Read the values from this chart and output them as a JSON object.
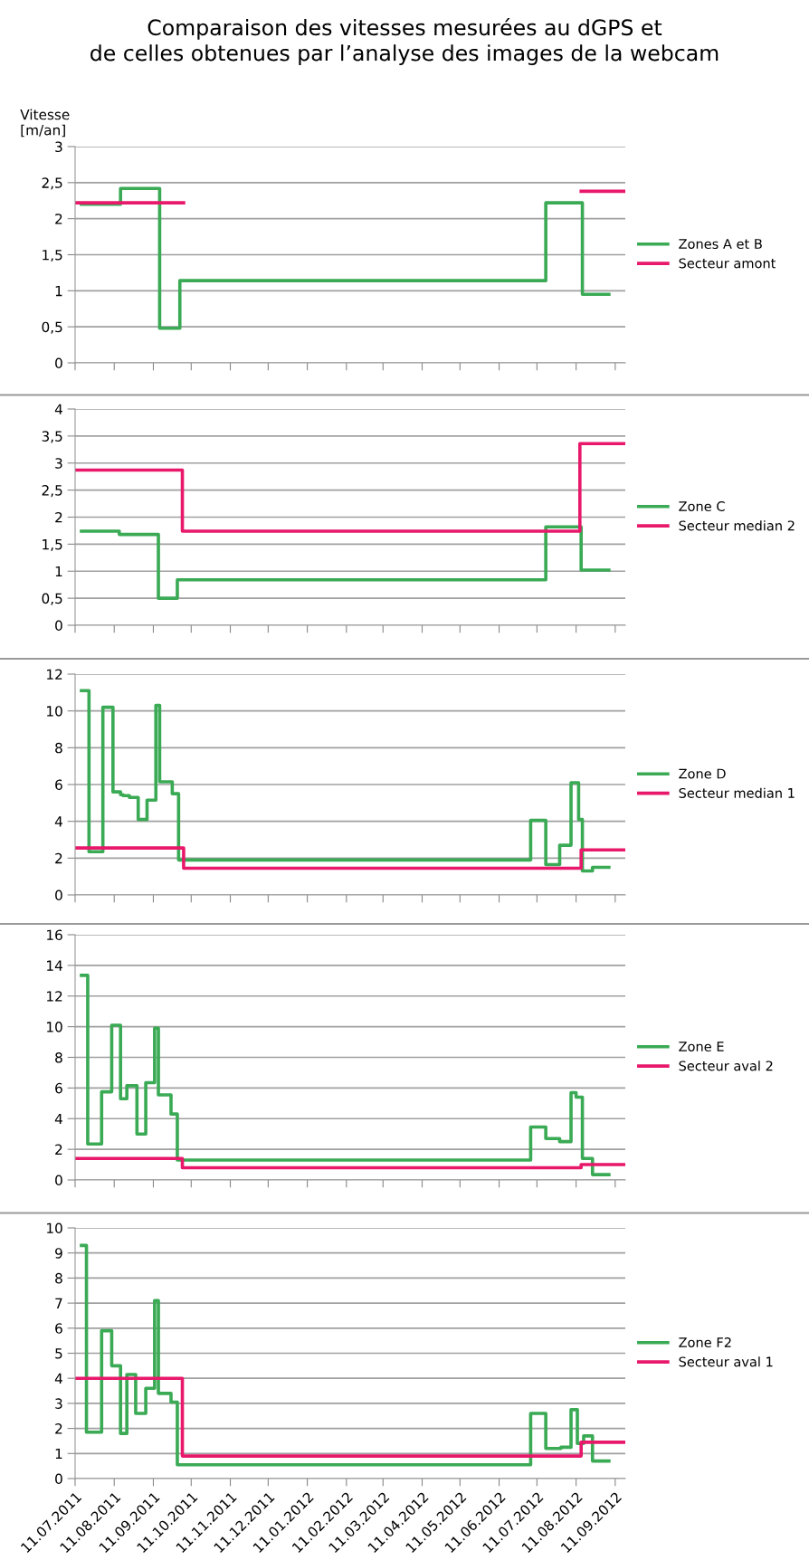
{
  "chart_data": [
    {
      "type": "step",
      "title": "Comparaison des vitesses mesurées au dGPS et\nde celles obtenues par l’analyse des images de la webcam",
      "ylabel": "Vitesse\n[m/an]",
      "xlim": [
        "2011-07-11",
        "2012-09-19"
      ],
      "ylim": [
        0,
        3
      ],
      "yticks": [
        0,
        {
          "value": 0.5,
          "label": "0,5"
        },
        1,
        {
          "value": 1.5,
          "label": "1,5"
        },
        2,
        {
          "value": 2.5,
          "label": "2,5"
        },
        3
      ],
      "xticks": [
        "2011-07-11",
        "2011-08-11",
        "2011-09-11",
        "2011-10-11",
        "2011-11-11",
        "2011-12-11",
        "2012-01-11",
        "2012-02-11",
        "2012-03-11",
        "2012-04-11",
        "2012-05-11",
        "2012-06-11",
        "2012-07-11",
        "2012-08-11",
        "2012-09-11"
      ],
      "tick_labels": "y",
      "grid": "y",
      "legend": "right",
      "series": [
        {
          "name": "Zones A et B",
          "color": "#3aaa55",
          "x": [
            "2011-07-16",
            "2011-08-16",
            "2011-09-16",
            "2011-10-02",
            "2012-07-18",
            "2012-08-16",
            "2012-09-06"
          ],
          "values": [
            2.2,
            2.42,
            0.48,
            1.14,
            2.22,
            0.95,
            0.95
          ]
        },
        {
          "name": "Secteur amont",
          "color": "#e8196b",
          "x": [
            "2011-07-11",
            "2011-10-05",
            "2012-08-15",
            "2012-09-19"
          ],
          "values": [
            2.22,
            null,
            2.38,
            2.38
          ]
        }
      ]
    },
    {
      "type": "step",
      "xlim": [
        "2011-07-11",
        "2012-09-19"
      ],
      "ylim": [
        0,
        4
      ],
      "yticks": [
        0,
        {
          "value": 0.5,
          "label": "0,5"
        },
        1,
        {
          "value": 1.5,
          "label": "1,5"
        },
        2,
        {
          "value": 2.5,
          "label": "2,5"
        },
        3,
        {
          "value": 3.5,
          "label": "3,5"
        },
        4
      ],
      "xticks": [
        "2011-07-11",
        "2011-08-11",
        "2011-09-11",
        "2011-10-11",
        "2011-11-11",
        "2011-12-11",
        "2012-01-11",
        "2012-02-11",
        "2012-03-11",
        "2012-04-11",
        "2012-05-11",
        "2012-06-11",
        "2012-07-11",
        "2012-08-11",
        "2012-09-11"
      ],
      "tick_labels": "y",
      "grid": "y",
      "legend": "right",
      "series": [
        {
          "name": "Zone C",
          "color": "#3aaa55",
          "x": [
            "2011-07-16",
            "2011-08-15",
            "2011-09-15",
            "2011-09-30",
            "2012-07-18",
            "2012-08-15",
            "2012-09-06"
          ],
          "values": [
            1.74,
            1.68,
            0.5,
            0.84,
            1.82,
            1.02,
            1.02
          ]
        },
        {
          "name": "Secteur median 2",
          "color": "#e8196b",
          "x": [
            "2011-07-11",
            "2011-10-04",
            "2012-08-14",
            "2012-09-19"
          ],
          "values": [
            2.87,
            1.74,
            3.36,
            3.36
          ]
        }
      ]
    },
    {
      "type": "step",
      "xlim": [
        "2011-07-11",
        "2012-09-19"
      ],
      "ylim": [
        0,
        12
      ],
      "yticks": [
        0,
        2,
        4,
        6,
        8,
        10,
        12
      ],
      "xticks": [
        "2011-07-11",
        "2011-08-11",
        "2011-09-11",
        "2011-10-11",
        "2011-11-11",
        "2011-12-11",
        "2012-01-11",
        "2012-02-11",
        "2012-03-11",
        "2012-04-11",
        "2012-05-11",
        "2012-06-11",
        "2012-07-11",
        "2012-08-11",
        "2012-09-11"
      ],
      "tick_labels": "y",
      "grid": "y",
      "legend": "right",
      "series": [
        {
          "name": "Zone D",
          "color": "#3aaa55",
          "x": [
            "2011-07-16",
            "2011-07-22",
            "2011-08-02",
            "2011-08-10",
            "2011-08-16",
            "2011-08-18",
            "2011-08-23",
            "2011-08-30",
            "2011-09-06",
            "2011-09-13",
            "2011-09-16",
            "2011-09-26",
            "2011-10-01",
            "2012-07-06",
            "2012-07-18",
            "2012-07-29",
            "2012-08-07",
            "2012-08-13",
            "2012-08-16",
            "2012-08-24",
            "2012-09-06"
          ],
          "values": [
            11.1,
            2.35,
            10.2,
            5.6,
            5.45,
            5.4,
            5.3,
            4.1,
            5.15,
            10.3,
            6.15,
            5.5,
            1.9,
            4.05,
            1.65,
            2.7,
            6.1,
            4.1,
            1.3,
            1.5,
            1.5
          ]
        },
        {
          "name": "Secteur median 1",
          "color": "#e8196b",
          "x": [
            "2011-07-11",
            "2011-10-05",
            "2012-08-15",
            "2012-09-19"
          ],
          "values": [
            2.55,
            1.45,
            2.45,
            2.45
          ]
        }
      ]
    },
    {
      "type": "step",
      "xlim": [
        "2011-07-11",
        "2012-09-19"
      ],
      "ylim": [
        0,
        16
      ],
      "yticks": [
        0,
        2,
        4,
        6,
        8,
        10,
        12,
        14,
        16
      ],
      "xticks": [
        "2011-07-11",
        "2011-08-11",
        "2011-09-11",
        "2011-10-11",
        "2011-11-11",
        "2011-12-11",
        "2012-01-11",
        "2012-02-11",
        "2012-03-11",
        "2012-04-11",
        "2012-05-11",
        "2012-06-11",
        "2012-07-11",
        "2012-08-11",
        "2012-09-11"
      ],
      "tick_labels": "y",
      "grid": "y",
      "legend": "right",
      "series": [
        {
          "name": "Zone E",
          "color": "#3aaa55",
          "x": [
            "2011-07-16",
            "2011-07-21",
            "2011-08-01",
            "2011-08-09",
            "2011-08-16",
            "2011-08-21",
            "2011-08-29",
            "2011-09-05",
            "2011-09-12",
            "2011-09-15",
            "2011-09-25",
            "2011-09-30",
            "2012-07-06",
            "2012-07-18",
            "2012-07-29",
            "2012-08-07",
            "2012-08-11",
            "2012-08-16",
            "2012-08-24",
            "2012-09-06"
          ],
          "values": [
            13.35,
            2.35,
            5.75,
            10.1,
            5.3,
            6.15,
            3.0,
            6.35,
            9.9,
            5.55,
            4.3,
            1.3,
            3.45,
            2.7,
            2.5,
            5.7,
            5.4,
            1.4,
            0.35,
            0.35
          ]
        },
        {
          "name": "Secteur aval 2",
          "color": "#e8196b",
          "x": [
            "2011-07-11",
            "2011-10-04",
            "2012-08-15",
            "2012-09-19"
          ],
          "values": [
            1.4,
            0.8,
            1.0,
            1.0
          ]
        }
      ]
    },
    {
      "type": "step",
      "xlim": [
        "2011-07-11",
        "2012-09-19"
      ],
      "ylim": [
        0,
        10
      ],
      "yticks": [
        0,
        1,
        2,
        3,
        4,
        5,
        6,
        7,
        8,
        9,
        10
      ],
      "xticks": [
        {
          "value": "2011-07-11",
          "label": "11.07.2011"
        },
        {
          "value": "2011-08-11",
          "label": "11.08.2011"
        },
        {
          "value": "2011-09-11",
          "label": "11.09.2011"
        },
        {
          "value": "2011-10-11",
          "label": "11.10.2011"
        },
        {
          "value": "2011-11-11",
          "label": "11.11.2011"
        },
        {
          "value": "2011-12-11",
          "label": "11.12.2011"
        },
        {
          "value": "2012-01-11",
          "label": "11.01.2012"
        },
        {
          "value": "2012-02-11",
          "label": "11.02.2012"
        },
        {
          "value": "2012-03-11",
          "label": "11.03.2012"
        },
        {
          "value": "2012-04-11",
          "label": "11.04.2012"
        },
        {
          "value": "2012-05-11",
          "label": "11.05.2012"
        },
        {
          "value": "2012-06-11",
          "label": "11.06.2012"
        },
        {
          "value": "2012-07-11",
          "label": "11.07.2012"
        },
        {
          "value": "2012-08-11",
          "label": "11.08.2012"
        },
        {
          "value": "2012-09-11",
          "label": "11.09.2012"
        }
      ],
      "grid": "y",
      "legend": "right",
      "series": [
        {
          "name": "Zone F2",
          "color": "#3aaa55",
          "x": [
            "2011-07-16",
            "2011-07-20",
            "2011-08-01",
            "2011-08-09",
            "2011-08-16",
            "2011-08-21",
            "2011-08-28",
            "2011-09-05",
            "2011-09-12",
            "2011-09-15",
            "2011-09-25",
            "2011-09-30",
            "2012-07-06",
            "2012-07-18",
            "2012-07-30",
            "2012-08-07",
            "2012-08-12",
            "2012-08-17",
            "2012-08-24",
            "2012-09-06"
          ],
          "values": [
            9.3,
            1.85,
            5.9,
            4.5,
            1.8,
            4.15,
            2.6,
            3.6,
            7.1,
            3.4,
            3.05,
            0.55,
            2.6,
            1.2,
            1.25,
            2.75,
            1.4,
            1.7,
            0.7,
            0.7
          ]
        },
        {
          "name": "Secteur aval 1",
          "color": "#e8196b",
          "x": [
            "2011-07-11",
            "2011-10-04",
            "2012-08-15",
            "2012-09-19"
          ],
          "values": [
            4.0,
            0.9,
            1.45,
            1.45
          ]
        }
      ]
    }
  ]
}
